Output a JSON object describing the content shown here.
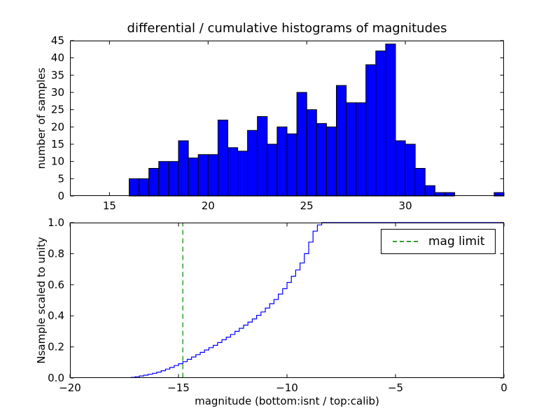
{
  "chart_data": [
    {
      "type": "bar",
      "title": "differential / cumulative histograms of magnitudes",
      "ylabel": "number of samples",
      "xlim": [
        13,
        35
      ],
      "ylim": [
        0,
        45
      ],
      "grid": false,
      "bar_color": "#0000ff",
      "edge_color": "#000000",
      "bin_width": 0.5,
      "bars": [
        [
          16.0,
          5
        ],
        [
          16.5,
          5
        ],
        [
          17.0,
          8
        ],
        [
          17.5,
          10
        ],
        [
          18.0,
          10
        ],
        [
          18.5,
          16
        ],
        [
          19.0,
          11
        ],
        [
          19.5,
          12
        ],
        [
          20.0,
          12
        ],
        [
          20.5,
          22
        ],
        [
          21.0,
          14
        ],
        [
          21.5,
          13
        ],
        [
          22.0,
          19
        ],
        [
          22.5,
          23
        ],
        [
          23.0,
          15
        ],
        [
          23.5,
          20
        ],
        [
          24.0,
          18
        ],
        [
          24.5,
          30
        ],
        [
          25.0,
          25
        ],
        [
          25.5,
          21
        ],
        [
          26.0,
          20
        ],
        [
          26.5,
          32
        ],
        [
          27.0,
          27
        ],
        [
          27.5,
          27
        ],
        [
          28.0,
          38
        ],
        [
          28.5,
          42
        ],
        [
          29.0,
          44
        ],
        [
          29.5,
          16
        ],
        [
          30.0,
          15
        ],
        [
          30.5,
          8
        ],
        [
          31.0,
          3
        ],
        [
          31.5,
          1
        ],
        [
          32.0,
          1
        ],
        [
          34.5,
          1
        ]
      ],
      "xticks": [
        [
          15,
          "15"
        ],
        [
          20,
          "20"
        ],
        [
          25,
          "25"
        ],
        [
          30,
          "30"
        ]
      ],
      "yticks": [
        [
          0,
          "0"
        ],
        [
          5,
          "5"
        ],
        [
          10,
          "10"
        ],
        [
          15,
          "15"
        ],
        [
          20,
          "20"
        ],
        [
          25,
          "25"
        ],
        [
          30,
          "30"
        ],
        [
          35,
          "35"
        ],
        [
          40,
          "40"
        ],
        [
          45,
          "45"
        ]
      ]
    },
    {
      "type": "line",
      "step": true,
      "ylabel": "Nsample scaled to unity",
      "xlabel": "magnitude (bottom:isnt / top:calib)",
      "xlim": [
        -20,
        0
      ],
      "ylim": [
        0,
        1
      ],
      "grid": false,
      "line_color": "#0000ff",
      "limit_color": "#33a02c",
      "mag_limit_x": -14.8,
      "legend": {
        "label": "mag limit",
        "position": "upper right"
      },
      "cumulative": [
        [
          -17.2,
          0.004
        ],
        [
          -17.0,
          0.008
        ],
        [
          -16.8,
          0.013
        ],
        [
          -16.6,
          0.018
        ],
        [
          -16.4,
          0.024
        ],
        [
          -16.2,
          0.03
        ],
        [
          -16.0,
          0.038
        ],
        [
          -15.8,
          0.047
        ],
        [
          -15.6,
          0.057
        ],
        [
          -15.4,
          0.068
        ],
        [
          -15.2,
          0.08
        ],
        [
          -15.0,
          0.092
        ],
        [
          -14.8,
          0.105
        ],
        [
          -14.6,
          0.12
        ],
        [
          -14.4,
          0.135
        ],
        [
          -14.2,
          0.15
        ],
        [
          -14.0,
          0.165
        ],
        [
          -13.8,
          0.18
        ],
        [
          -13.6,
          0.195
        ],
        [
          -13.4,
          0.21
        ],
        [
          -13.2,
          0.228
        ],
        [
          -13.0,
          0.246
        ],
        [
          -12.8,
          0.263
        ],
        [
          -12.6,
          0.28
        ],
        [
          -12.4,
          0.3
        ],
        [
          -12.2,
          0.32
        ],
        [
          -12.0,
          0.34
        ],
        [
          -11.8,
          0.36
        ],
        [
          -11.6,
          0.38
        ],
        [
          -11.4,
          0.403
        ],
        [
          -11.2,
          0.425
        ],
        [
          -11.0,
          0.45
        ],
        [
          -10.8,
          0.478
        ],
        [
          -10.6,
          0.505
        ],
        [
          -10.4,
          0.54
        ],
        [
          -10.2,
          0.575
        ],
        [
          -10.0,
          0.615
        ],
        [
          -9.8,
          0.655
        ],
        [
          -9.6,
          0.695
        ],
        [
          -9.4,
          0.74
        ],
        [
          -9.2,
          0.8
        ],
        [
          -9.0,
          0.875
        ],
        [
          -8.8,
          0.945
        ],
        [
          -8.6,
          0.985
        ],
        [
          -8.4,
          1.0
        ]
      ],
      "xticks": [
        [
          -20,
          "−20"
        ],
        [
          -15,
          "−15"
        ],
        [
          -10,
          "−10"
        ],
        [
          -5,
          "−5"
        ],
        [
          0,
          "0"
        ]
      ],
      "yticks": [
        [
          0,
          "0.0"
        ],
        [
          0.2,
          "0.2"
        ],
        [
          0.4,
          "0.4"
        ],
        [
          0.6,
          "0.6"
        ],
        [
          0.8,
          "0.8"
        ],
        [
          1.0,
          "1.0"
        ]
      ]
    }
  ]
}
